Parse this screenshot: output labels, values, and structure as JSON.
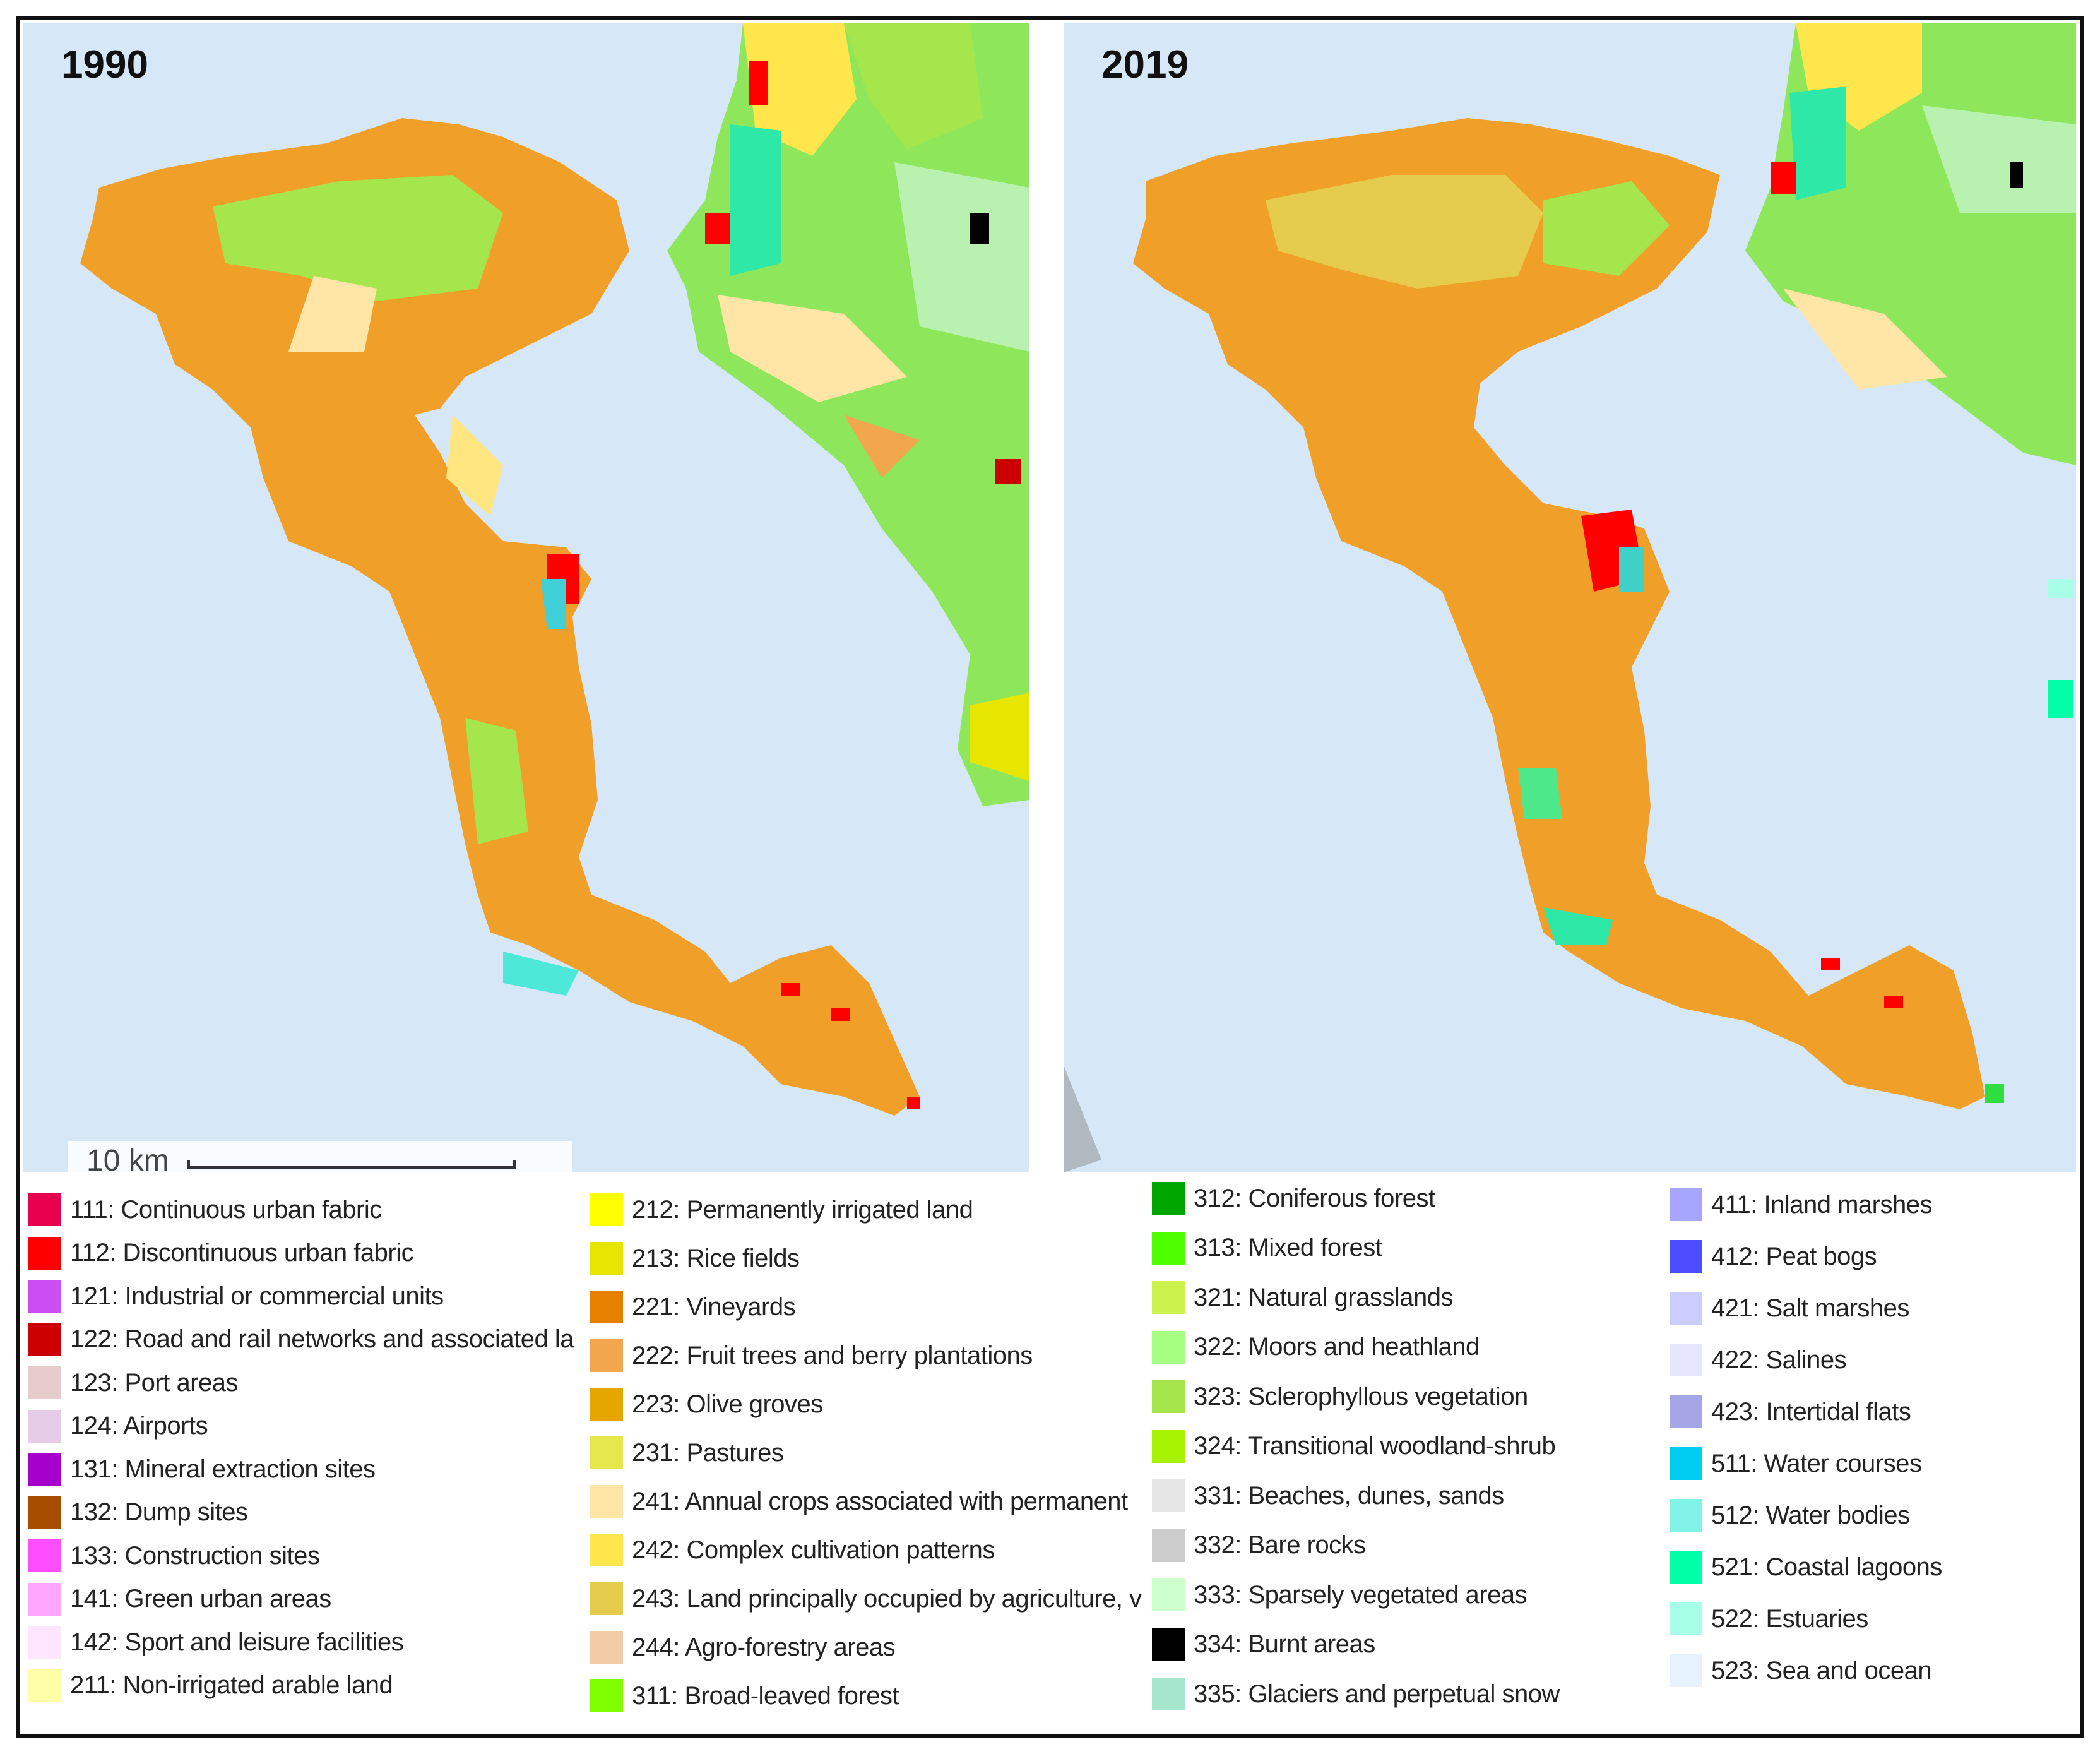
{
  "panels": {
    "left": {
      "year": "1990"
    },
    "right": {
      "year": "2019"
    }
  },
  "scale": {
    "label": "10 km"
  },
  "legend": {
    "col1": [
      {
        "label": "111: Continuous urban fabric",
        "color": "#e6004d"
      },
      {
        "label": "112: Discontinuous urban fabric",
        "color": "#ff0000"
      },
      {
        "label": "121: Industrial or commercial units",
        "color": "#cc4df2"
      },
      {
        "label": "122: Road and rail networks and associated la",
        "color": "#cc0000"
      },
      {
        "label": "123: Port areas",
        "color": "#e6cccc"
      },
      {
        "label": "124: Airports",
        "color": "#e6cce6"
      },
      {
        "label": "131: Mineral extraction sites",
        "color": "#a600cc"
      },
      {
        "label": "132: Dump sites",
        "color": "#a64d00"
      },
      {
        "label": "133: Construction sites",
        "color": "#ff4dff"
      },
      {
        "label": "141: Green urban areas",
        "color": "#ffa6ff"
      },
      {
        "label": "142: Sport and leisure facilities",
        "color": "#ffe6ff"
      },
      {
        "label": "211: Non-irrigated arable land",
        "color": "#ffffa8"
      }
    ],
    "col2": [
      {
        "label": "212: Permanently irrigated land",
        "color": "#ffff00"
      },
      {
        "label": "213: Rice fields",
        "color": "#e6e600"
      },
      {
        "label": "221: Vineyards",
        "color": "#e68000"
      },
      {
        "label": "222: Fruit trees and berry plantations",
        "color": "#f2a64d"
      },
      {
        "label": "223: Olive groves",
        "color": "#e6a600"
      },
      {
        "label": "231: Pastures",
        "color": "#e6e64d"
      },
      {
        "label": "241: Annual crops associated with permanent",
        "color": "#ffe6a6"
      },
      {
        "label": "242: Complex cultivation patterns",
        "color": "#ffe64d"
      },
      {
        "label": "243: Land principally occupied by agriculture, v",
        "color": "#e6cc4d"
      },
      {
        "label": "244: Agro-forestry areas",
        "color": "#f2cca6"
      },
      {
        "label": "311: Broad-leaved forest",
        "color": "#80ff00"
      }
    ],
    "col3": [
      {
        "label": "312: Coniferous forest",
        "color": "#00a600"
      },
      {
        "label": "313: Mixed forest",
        "color": "#4dff00"
      },
      {
        "label": "321: Natural grasslands",
        "color": "#ccf24d"
      },
      {
        "label": "322: Moors and heathland",
        "color": "#a6ff80"
      },
      {
        "label": "323: Sclerophyllous vegetation",
        "color": "#a6e64d"
      },
      {
        "label": "324: Transitional woodland-shrub",
        "color": "#a6f200"
      },
      {
        "label": "331: Beaches, dunes, sands",
        "color": "#e6e6e6"
      },
      {
        "label": "332: Bare rocks",
        "color": "#cccccc"
      },
      {
        "label": "333: Sparsely vegetated areas",
        "color": "#ccffcc"
      },
      {
        "label": "334: Burnt areas",
        "color": "#000000"
      },
      {
        "label": "335: Glaciers and perpetual snow",
        "color": "#a6e6cc"
      }
    ],
    "col4": [
      {
        "label": "411: Inland marshes",
        "color": "#a6a6ff"
      },
      {
        "label": "412: Peat bogs",
        "color": "#4d4dff"
      },
      {
        "label": "421: Salt marshes",
        "color": "#ccccff"
      },
      {
        "label": "422: Salines",
        "color": "#e6e6ff"
      },
      {
        "label": "423: Intertidal flats",
        "color": "#a6a6e6"
      },
      {
        "label": "511: Water courses",
        "color": "#00ccf2"
      },
      {
        "label": "512: Water bodies",
        "color": "#80f2e6"
      },
      {
        "label": "521: Coastal lagoons",
        "color": "#00ffa6"
      },
      {
        "label": "522: Estuaries",
        "color": "#a6ffe6"
      },
      {
        "label": "523: Sea and ocean",
        "color": "#e6f2ff"
      }
    ]
  }
}
